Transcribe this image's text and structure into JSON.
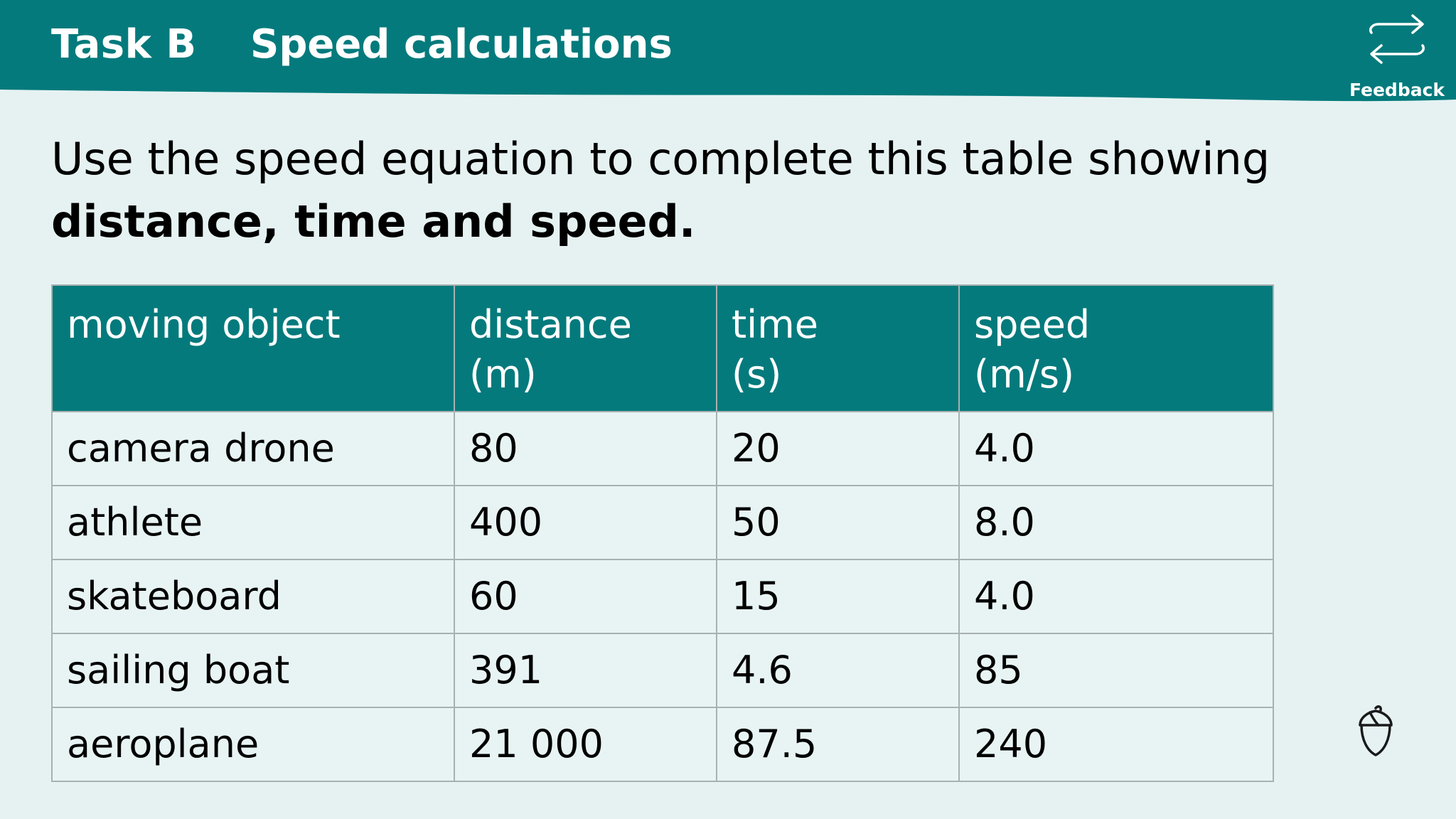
{
  "header": {
    "task_label": "Task B",
    "title": "Speed calculations",
    "feedback_label": "Feedback",
    "feedback_icon": "swap-arrows-icon"
  },
  "instruction": {
    "line1": "Use the speed equation to complete this table showing",
    "line2_bold": "distance, time and speed."
  },
  "table": {
    "headers": [
      {
        "line1": "moving object",
        "line2": ""
      },
      {
        "line1": "distance",
        "line2": "(m)"
      },
      {
        "line1": "time",
        "line2": "(s)"
      },
      {
        "line1": "speed",
        "line2": "(m/s)"
      }
    ],
    "rows": [
      [
        "camera drone",
        "80",
        "20",
        "4.0"
      ],
      [
        "athlete",
        "400",
        "50",
        "8.0"
      ],
      [
        "skateboard",
        "60",
        "15",
        "4.0"
      ],
      [
        "sailing boat",
        "391",
        "4.6",
        "85"
      ],
      [
        "aeroplane",
        "21 000",
        "87.5",
        "240"
      ]
    ]
  },
  "footer": {
    "logo_icon": "acorn-icon"
  },
  "colors": {
    "header_bg": "#047a7c",
    "page_bg": "#e6f2f2",
    "table_header_bg": "#047a7c",
    "table_cell_bg": "#e8f4f4",
    "border": "#a8b1b1"
  }
}
